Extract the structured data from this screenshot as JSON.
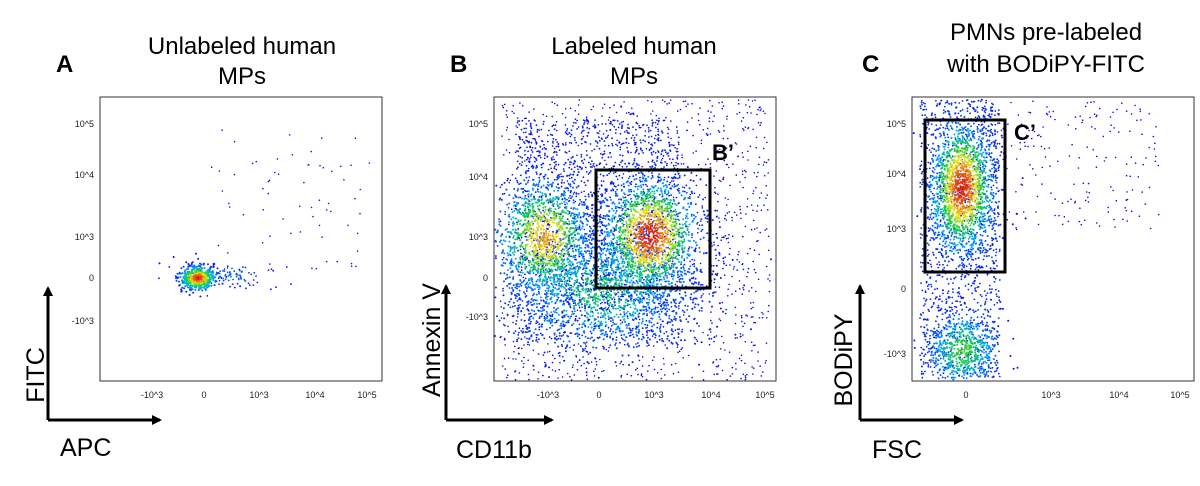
{
  "figure": {
    "panels": [
      {
        "id": "A",
        "letter": "A",
        "title_lines": [
          "Unlabeled human",
          "MPs"
        ],
        "xlabel": "APC",
        "ylabel": "FITC",
        "gate_label": ""
      },
      {
        "id": "B",
        "letter": "B",
        "title_lines": [
          "Labeled human",
          "MPs"
        ],
        "xlabel": "CD11b",
        "ylabel": "Annexin V",
        "gate_label": "B’"
      },
      {
        "id": "C",
        "letter": "C",
        "title_lines": [
          "PMNs pre-labeled",
          "with BODiPY-FITC"
        ],
        "xlabel": "FSC",
        "ylabel": "BODiPY",
        "gate_label": "C’"
      }
    ]
  },
  "chart_data": [
    {
      "type": "scatter",
      "title": "Unlabeled human MPs",
      "xlabel": "APC",
      "ylabel": "FITC",
      "x_scale": "biexponential",
      "y_scale": "biexponential",
      "x_ticks": [
        "-10^3",
        "0",
        "10^3",
        "10^4",
        "10^5"
      ],
      "y_ticks": [
        "10^5",
        "10^4",
        "10^3",
        "0",
        "-10^3"
      ],
      "xlim": [
        -2000,
        200000
      ],
      "ylim": [
        -2000,
        300000
      ],
      "colormap": "density (blue-green-yellow-red)",
      "populations": [
        {
          "name": "main cluster",
          "x_center": 0,
          "y_center": 0,
          "relative_density": "high"
        },
        {
          "name": "sparse events",
          "x_range": [
            0,
            50000
          ],
          "y_range": [
            0,
            60000
          ],
          "relative_density": "very low"
        }
      ],
      "gates": []
    },
    {
      "type": "scatter",
      "title": "Labeled human MPs",
      "xlabel": "CD11b",
      "ylabel": "Annexin V",
      "x_scale": "biexponential",
      "y_scale": "biexponential",
      "x_ticks": [
        "-10^3",
        "0",
        "10^3",
        "10^4",
        "10^5"
      ],
      "y_ticks": [
        "10^5",
        "10^4",
        "10^3",
        "0",
        "-10^3"
      ],
      "xlim": [
        -2000,
        200000
      ],
      "ylim": [
        -2000,
        300000
      ],
      "colormap": "density (blue-green-yellow-red)",
      "populations": [
        {
          "name": "CD11b- Annexin V+",
          "x_center": -1000,
          "y_center": 1000,
          "relative_density": "high"
        },
        {
          "name": "CD11b+ Annexin V+",
          "x_center": 1000,
          "y_center": 1000,
          "relative_density": "highest"
        },
        {
          "name": "Annexin V- background",
          "x_center": 300,
          "y_center": -500,
          "relative_density": "medium"
        }
      ],
      "gates": [
        {
          "label": "B’",
          "x_range": [
            0,
            12000
          ],
          "y_range": [
            0,
            12000
          ]
        }
      ]
    },
    {
      "type": "scatter",
      "title": "PMNs pre-labeled with BODiPY-FITC",
      "xlabel": "FSC",
      "ylabel": "BODiPY",
      "x_scale": "biexponential",
      "y_scale": "biexponential",
      "x_ticks": [
        "0",
        "10^3",
        "10^4",
        "10^5"
      ],
      "y_ticks": [
        "10^5",
        "10^4",
        "10^3",
        "0",
        "-10^3"
      ],
      "xlim": [
        -1500,
        200000
      ],
      "ylim": [
        -2000,
        300000
      ],
      "colormap": "density (blue-green-yellow-red)",
      "populations": [
        {
          "name": "BODiPY-high",
          "x_center": 0,
          "y_center": 5000,
          "relative_density": "highest"
        },
        {
          "name": "BODiPY-low",
          "x_center": 0,
          "y_center": -1000,
          "relative_density": "medium"
        }
      ],
      "gates": [
        {
          "label": "C’",
          "x_range": [
            -1200,
            300
          ],
          "y_range": [
            150,
            100000
          ]
        }
      ]
    }
  ]
}
